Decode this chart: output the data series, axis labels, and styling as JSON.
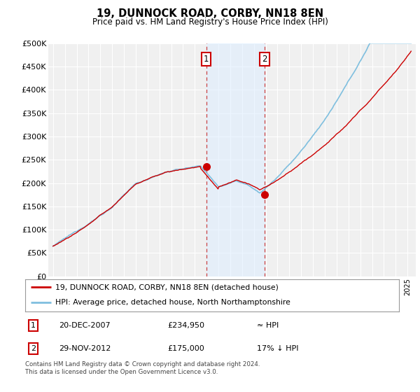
{
  "title": "19, DUNNOCK ROAD, CORBY, NN18 8EN",
  "subtitle": "Price paid vs. HM Land Registry's House Price Index (HPI)",
  "ylabel_ticks": [
    "£0",
    "£50K",
    "£100K",
    "£150K",
    "£200K",
    "£250K",
    "£300K",
    "£350K",
    "£400K",
    "£450K",
    "£500K"
  ],
  "ytick_values": [
    0,
    50000,
    100000,
    150000,
    200000,
    250000,
    300000,
    350000,
    400000,
    450000,
    500000
  ],
  "ylim": [
    0,
    500000
  ],
  "sale1": {
    "date": "20-DEC-2007",
    "price": 234950,
    "label": "1",
    "relation": "≈ HPI"
  },
  "sale2": {
    "date": "29-NOV-2012",
    "price": 175000,
    "label": "2",
    "relation": "17% ↓ HPI"
  },
  "hpi_line_color": "#7fbfdf",
  "price_line_color": "#cc0000",
  "shade_color": "#ddeeff",
  "shade_alpha": 0.55,
  "legend_line1": "19, DUNNOCK ROAD, CORBY, NN18 8EN (detached house)",
  "legend_line2": "HPI: Average price, detached house, North Northamptonshire",
  "footnote": "Contains HM Land Registry data © Crown copyright and database right 2024.\nThis data is licensed under the Open Government Licence v3.0.",
  "background_color": "#ffffff",
  "plot_bg_color": "#f0f0f0",
  "grid_color": "#ffffff",
  "sale1_year": 2007.97,
  "sale2_year": 2012.91
}
